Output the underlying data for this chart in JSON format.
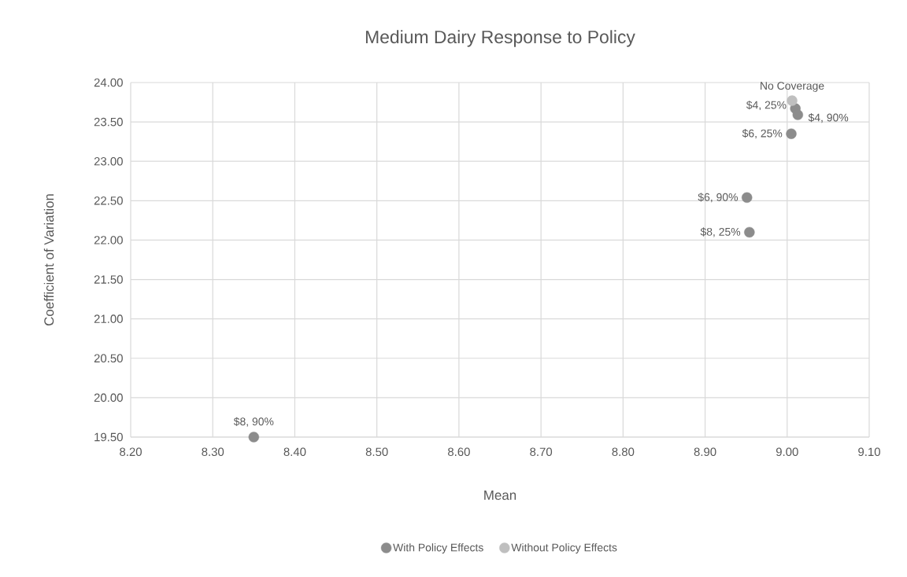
{
  "chart_data": {
    "type": "scatter",
    "title": "Medium Dairy Response to Policy",
    "xlabel": "Mean",
    "ylabel": "Coefficient of Variation",
    "xlim": [
      8.2,
      9.1
    ],
    "xticks": [
      {
        "value": 8.2,
        "label": "8.20"
      },
      {
        "value": 8.3,
        "label": "8.30"
      },
      {
        "value": 8.4,
        "label": "8.40"
      },
      {
        "value": 8.5,
        "label": "8.50"
      },
      {
        "value": 8.6,
        "label": "8.60"
      },
      {
        "value": 8.7,
        "label": "8.70"
      },
      {
        "value": 8.8,
        "label": "8.80"
      },
      {
        "value": 8.9,
        "label": "8.90"
      },
      {
        "value": 9.0,
        "label": "9.00"
      },
      {
        "value": 9.1,
        "label": "9.10"
      }
    ],
    "ylim": [
      19.5,
      24.0
    ],
    "yticks": [
      {
        "value": 19.5,
        "label": "19.50"
      },
      {
        "value": 20.0,
        "label": "20.00"
      },
      {
        "value": 20.5,
        "label": "20.50"
      },
      {
        "value": 21.0,
        "label": "21.00"
      },
      {
        "value": 21.5,
        "label": "21.50"
      },
      {
        "value": 22.0,
        "label": "22.00"
      },
      {
        "value": 22.5,
        "label": "22.50"
      },
      {
        "value": 23.0,
        "label": "23.00"
      },
      {
        "value": 23.5,
        "label": "23.50"
      },
      {
        "value": 24.0,
        "label": "24.00"
      }
    ],
    "grid": true,
    "legend": "bottom",
    "marker": "circle",
    "series": [
      {
        "name": "With Policy Effects",
        "color": "#8c8c8c",
        "x": [
          9.01,
          9.013,
          9.005,
          8.951,
          8.954,
          8.35
        ],
        "values": [
          23.67,
          23.59,
          23.35,
          22.54,
          22.1,
          19.5
        ],
        "value_labels": [
          "$4, 25%",
          "$4, 90%",
          "$6, 25%",
          "$6, 90%",
          "$8, 25%",
          "$8, 90%"
        ]
      },
      {
        "name": "Without Policy Effects",
        "color": "#bfbfbf",
        "x": [
          9.006
        ],
        "values": [
          23.77
        ],
        "value_labels": [
          "No Coverage"
        ]
      }
    ]
  }
}
